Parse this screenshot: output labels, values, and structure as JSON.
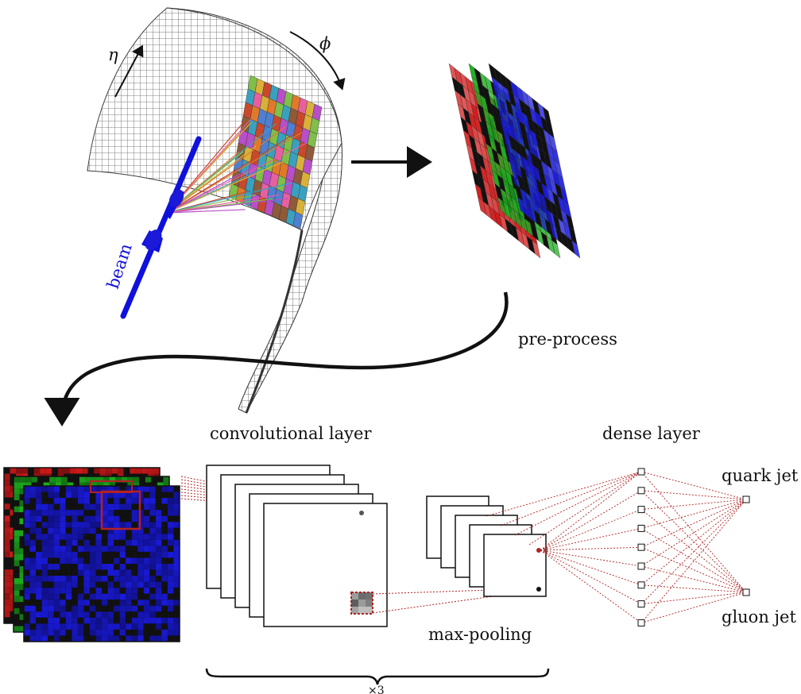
{
  "labels": {
    "eta": "η",
    "phi": "ϕ",
    "beam": "beam",
    "pre_process": "pre-process",
    "convolutional_layer": "convolutional layer",
    "dense_layer": "dense layer",
    "max_pooling": "max-pooling",
    "quark_jet": "quark jet",
    "gluon_jet": "gluon jet",
    "repeat": "×3"
  },
  "colors": {
    "beam": "#1010dd",
    "channel_red": "#d11a1a",
    "channel_green": "#1fae1f",
    "channel_blue": "#1a1ad8",
    "connection": "#b22222",
    "mesh": "#444444"
  },
  "dense_layer": {
    "node_count": 9,
    "output_nodes": [
      "quark jet",
      "gluon jet"
    ]
  },
  "conv_feature_maps": 5,
  "pool_feature_maps": 5
}
